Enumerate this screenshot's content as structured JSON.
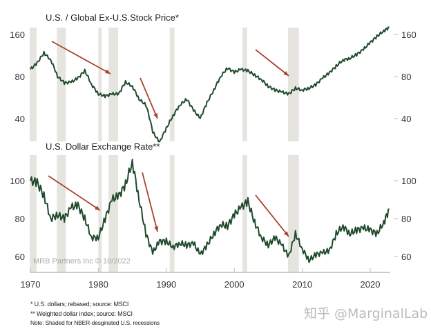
{
  "chart_data": [
    {
      "type": "line",
      "title": "U.S. / Global Ex-U.S.Stock Price*",
      "yscale": "log",
      "ylim": [
        24,
        185
      ],
      "yticks": [
        40,
        80,
        160
      ],
      "xlim": [
        1970,
        2022.8
      ],
      "series": [
        {
          "name": "U.S. / Global Ex-U.S. Stock Price",
          "x": [
            1970,
            1971,
            1972,
            1973,
            1974,
            1975,
            1976,
            1977,
            1978,
            1979,
            1980,
            1981,
            1982,
            1983,
            1984,
            1985,
            1986,
            1987,
            1988,
            1989,
            1990,
            1991,
            1992,
            1993,
            1994,
            1995,
            1996,
            1997,
            1998,
            1999,
            2000,
            2001,
            2002,
            2003,
            2004,
            2005,
            2006,
            2007,
            2008,
            2009,
            2010,
            2011,
            2012,
            2013,
            2014,
            2015,
            2016,
            2017,
            2018,
            2019,
            2020,
            2021,
            2022,
            2022.8
          ],
          "values": [
            90,
            100,
            118,
            105,
            80,
            72,
            73,
            78,
            88,
            70,
            60,
            58,
            60,
            60,
            73,
            68,
            55,
            50,
            32,
            27,
            34,
            42,
            50,
            55,
            46,
            40,
            52,
            64,
            80,
            92,
            86,
            90,
            88,
            82,
            76,
            68,
            64,
            62,
            60,
            66,
            64,
            66,
            70,
            78,
            85,
            95,
            105,
            108,
            115,
            125,
            140,
            155,
            170,
            180
          ]
        }
      ]
    },
    {
      "type": "line",
      "title": "U.S. Dollar Exchange Rate**",
      "yscale": "linear",
      "ylim": [
        52,
        112
      ],
      "yticks": [
        60,
        80,
        100
      ],
      "xlim": [
        1970,
        2022.8
      ],
      "series": [
        {
          "name": "U.S. Dollar Exchange Rate",
          "x": [
            1970,
            1971,
            1972,
            1973,
            1974,
            1975,
            1976,
            1977,
            1978,
            1979,
            1980,
            1981,
            1982,
            1983,
            1984,
            1985,
            1986,
            1987,
            1988,
            1989,
            1990,
            1991,
            1992,
            1993,
            1994,
            1995,
            1996,
            1997,
            1998,
            1999,
            2000,
            2001,
            2002,
            2003,
            2004,
            2005,
            2006,
            2007,
            2008,
            2009,
            2010,
            2011,
            2012,
            2013,
            2014,
            2015,
            2016,
            2017,
            2018,
            2019,
            2020,
            2021,
            2022,
            2022.8
          ],
          "values": [
            100,
            99,
            92,
            80,
            82,
            80,
            86,
            87,
            80,
            70,
            70,
            80,
            90,
            92,
            98,
            110,
            90,
            72,
            62,
            68,
            68,
            65,
            67,
            66,
            67,
            61,
            66,
            72,
            77,
            76,
            82,
            86,
            89,
            78,
            70,
            66,
            70,
            66,
            60,
            72,
            64,
            58,
            61,
            62,
            63,
            72,
            76,
            72,
            74,
            75,
            74,
            72,
            78,
            85
          ]
        }
      ]
    }
  ],
  "x_ticks": [
    "1970",
    "1980",
    "1990",
    "2000",
    "2010",
    "2020"
  ],
  "x_tick_values": [
    1970,
    1980,
    1990,
    2000,
    2010,
    2020
  ],
  "recessions": [
    [
      1969.9,
      1970.9
    ],
    [
      1973.9,
      1975.2
    ],
    [
      1980.0,
      1980.5
    ],
    [
      1981.5,
      1982.9
    ],
    [
      1990.5,
      1991.2
    ],
    [
      2001.2,
      2001.9
    ],
    [
      2007.9,
      2009.5
    ]
  ],
  "credit": "MRB Partners Inc © 10/2022",
  "notes": [
    "*  U.S. dollars; rebased; source:  MSCI",
    "** Weighted dollar index; source: MSCI",
    "Note: Shaded for NBER-desginated U.S. recessions"
  ],
  "watermark": "知乎 @MarginalLab",
  "colors": {
    "line": "#1f4a2c",
    "arrow": "#a8432e",
    "recession": "#e6e4df",
    "axis": "#bbbbbb"
  }
}
